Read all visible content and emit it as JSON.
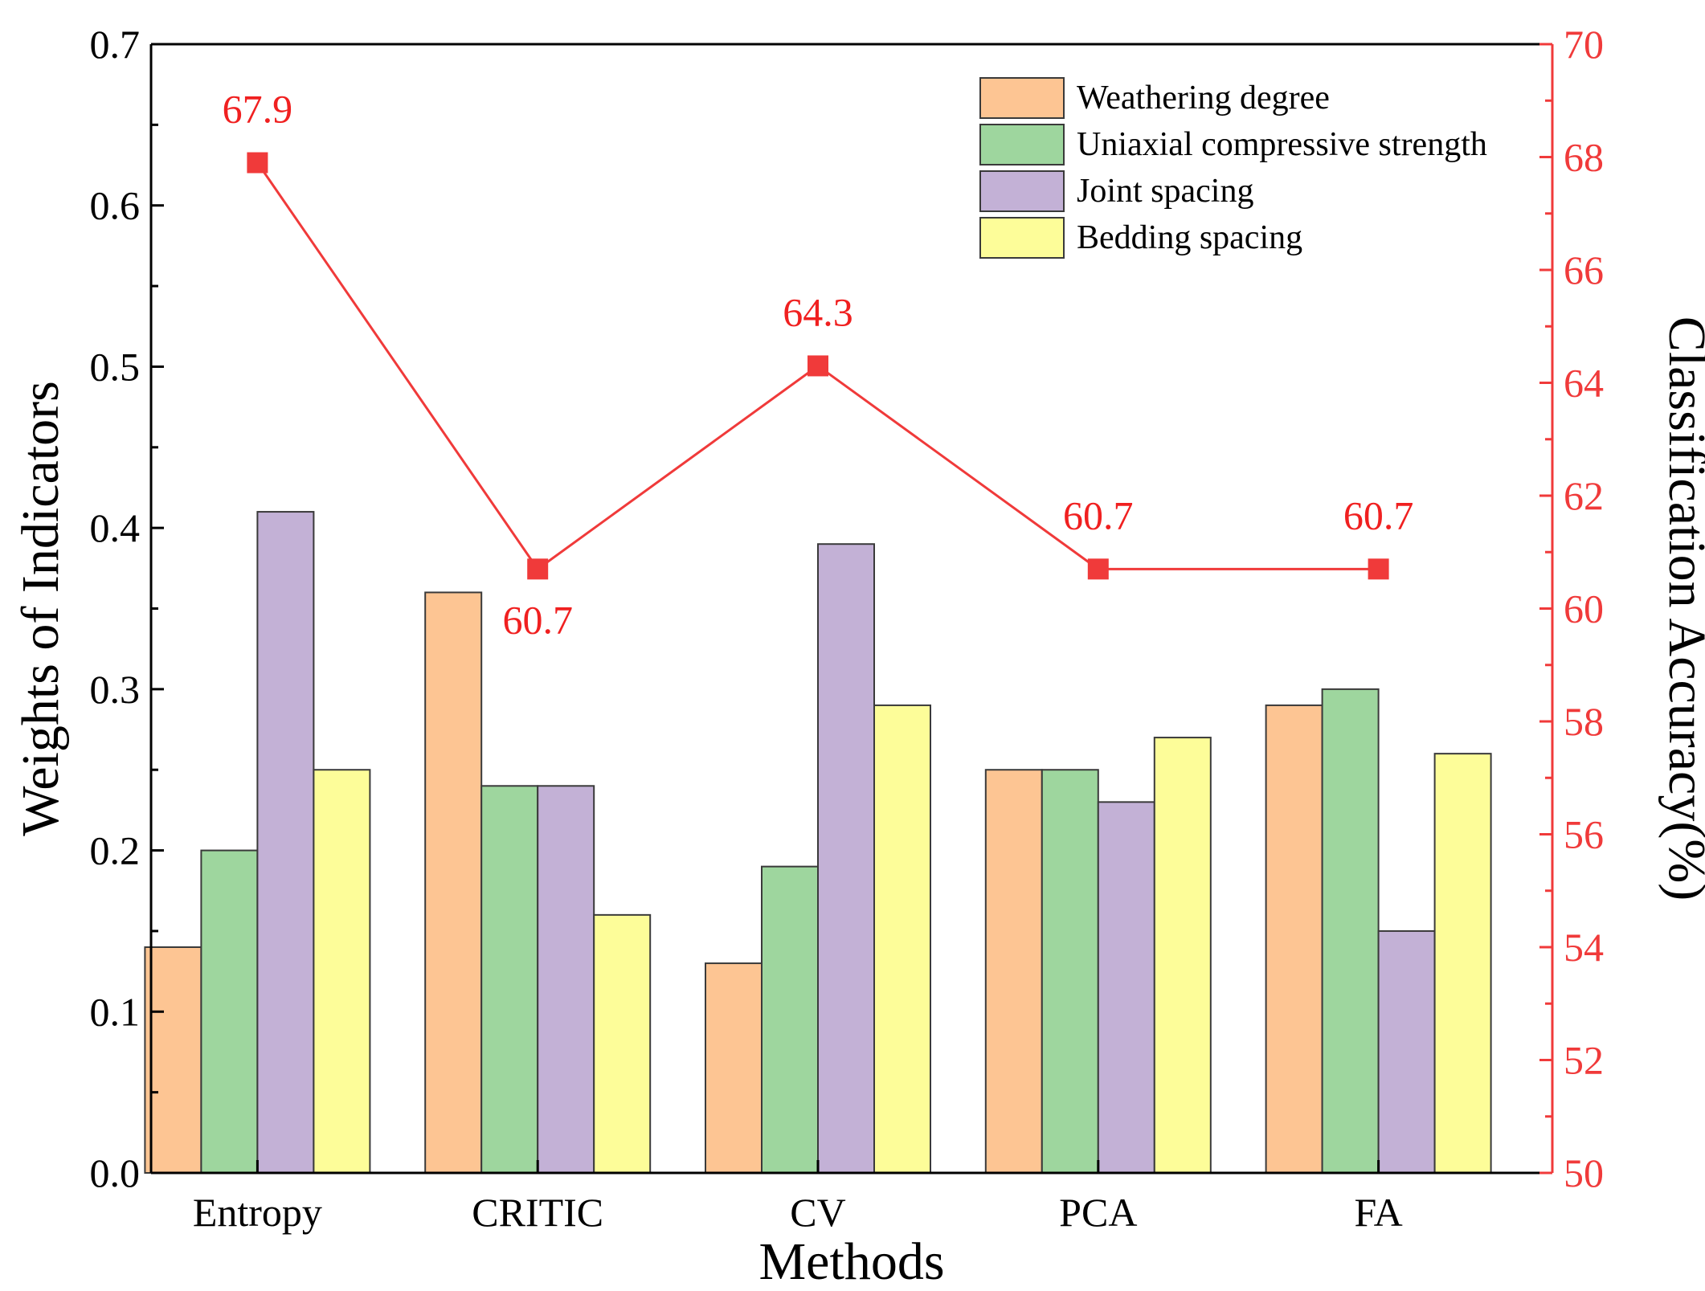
{
  "chart_data": {
    "type": "bar",
    "categories": [
      "Entropy",
      "CRITIC",
      "CV",
      "PCA",
      "FA"
    ],
    "series": [
      {
        "name": "Weathering degree",
        "color": "#FDC593",
        "values": [
          0.14,
          0.36,
          0.13,
          0.25,
          0.29
        ]
      },
      {
        "name": "Uniaxial compressive strength",
        "color": "#9ED69E",
        "values": [
          0.2,
          0.24,
          0.19,
          0.25,
          0.3
        ]
      },
      {
        "name": "Joint spacing",
        "color": "#C3B1D6",
        "values": [
          0.41,
          0.24,
          0.39,
          0.23,
          0.15
        ]
      },
      {
        "name": "Bedding spacing",
        "color": "#FDFD99",
        "values": [
          0.25,
          0.16,
          0.29,
          0.27,
          0.26
        ]
      }
    ],
    "line_series": {
      "name": "Classification Accuracy",
      "color": "#F03A3A",
      "values": [
        67.9,
        60.7,
        64.3,
        60.7,
        60.7
      ],
      "labels": [
        "67.9",
        "60.7",
        "64.3",
        "60.7",
        "60.7"
      ],
      "label_positions": [
        "above",
        "below",
        "above",
        "above",
        "above"
      ]
    },
    "xlabel": "Methods",
    "ylabel": "Weights of Indicators",
    "y2label": "Classification Accuracy(%)",
    "ylim": [
      0.0,
      0.7
    ],
    "y2lim": [
      50,
      70
    ],
    "yticks": [
      "0.0",
      "0.1",
      "0.2",
      "0.3",
      "0.4",
      "0.5",
      "0.6",
      "0.7"
    ],
    "y2ticks": [
      "50",
      "52",
      "54",
      "56",
      "58",
      "60",
      "62",
      "64",
      "66",
      "68",
      "70"
    ],
    "legend_position": "top-right",
    "grid": false
  }
}
